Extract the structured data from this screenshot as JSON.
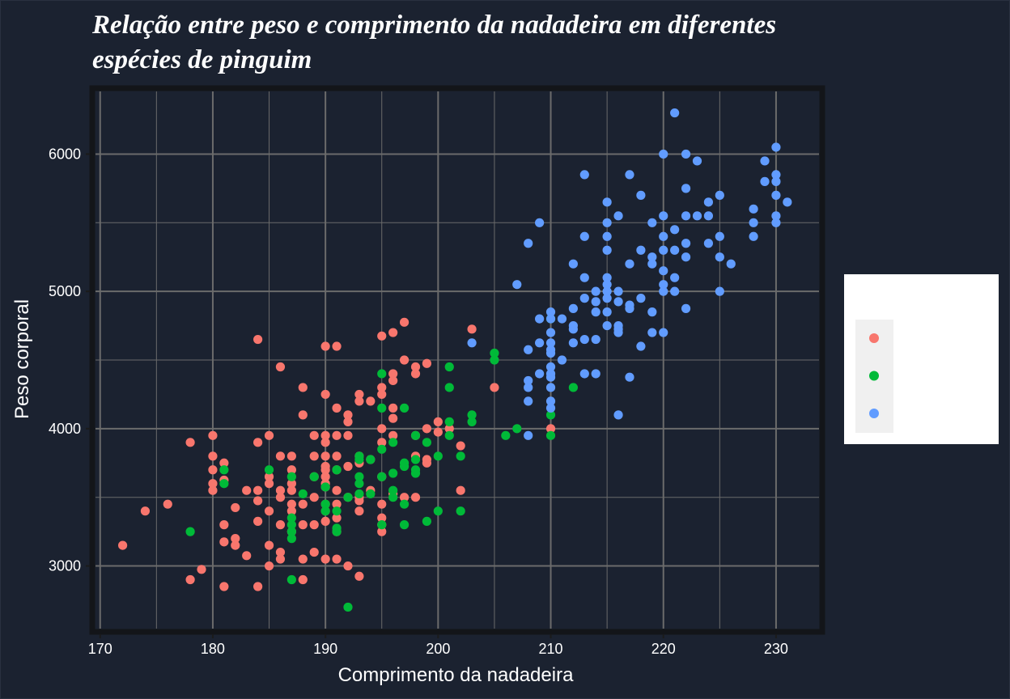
{
  "chart_data": {
    "type": "scatter",
    "title_line1": "Relação entre peso e comprimento da nadadeira em diferentes",
    "title_line2": "espécies de pinguim",
    "xlabel": "Comprimento da nadadeira",
    "ylabel": "Peso corporal",
    "xlim": [
      169.3,
      234.1
    ],
    "ylim": [
      2520,
      6480
    ],
    "x_ticks": [
      "170",
      "180",
      "190",
      "200",
      "210",
      "220",
      "230"
    ],
    "y_ticks": [
      "3000",
      "4000",
      "5000",
      "6000"
    ],
    "x_tick_values": [
      170,
      180,
      190,
      200,
      210,
      220,
      230
    ],
    "y_tick_values": [
      3000,
      4000,
      5000,
      6000
    ],
    "grid": true,
    "legend_position": "right",
    "colors": {
      "background": "#1b2230",
      "panel": "#1b2230",
      "panel_border": "#131519",
      "grid": "#6b6b6b",
      "legend_box": "#ffffff",
      "legend_key_bg": "#f0f0f0"
    },
    "series": [
      {
        "color": "#f8766d",
        "points": [
          [
            172,
            3150
          ],
          [
            174,
            3400
          ],
          [
            176,
            3450
          ],
          [
            178,
            3900
          ],
          [
            178,
            2900
          ],
          [
            179,
            2975
          ],
          [
            180,
            3950
          ],
          [
            180,
            3800
          ],
          [
            180,
            3700
          ],
          [
            180,
            3600
          ],
          [
            180,
            3550
          ],
          [
            181,
            3300
          ],
          [
            181,
            3175
          ],
          [
            181,
            2850
          ],
          [
            181,
            3750
          ],
          [
            181,
            3625
          ],
          [
            182,
            3425
          ],
          [
            182,
            3200
          ],
          [
            182,
            3150
          ],
          [
            183,
            3550
          ],
          [
            183,
            3075
          ],
          [
            184,
            4650
          ],
          [
            184,
            3900
          ],
          [
            184,
            3550
          ],
          [
            184,
            3475
          ],
          [
            184,
            3325
          ],
          [
            184,
            2850
          ],
          [
            185,
            3950
          ],
          [
            185,
            3650
          ],
          [
            185,
            3600
          ],
          [
            185,
            3400
          ],
          [
            185,
            3150
          ],
          [
            185,
            3000
          ],
          [
            186,
            4450
          ],
          [
            186,
            3800
          ],
          [
            186,
            3550
          ],
          [
            186,
            3500
          ],
          [
            186,
            3300
          ],
          [
            186,
            3100
          ],
          [
            186,
            3050
          ],
          [
            187,
            3800
          ],
          [
            187,
            3700
          ],
          [
            187,
            3600
          ],
          [
            187,
            3550
          ],
          [
            187,
            3450
          ],
          [
            187,
            3400
          ],
          [
            187,
            3250
          ],
          [
            188,
            4300
          ],
          [
            188,
            4100
          ],
          [
            188,
            3450
          ],
          [
            188,
            3300
          ],
          [
            188,
            3050
          ],
          [
            188,
            2900
          ],
          [
            189,
            3950
          ],
          [
            189,
            3800
          ],
          [
            189,
            3650
          ],
          [
            189,
            3500
          ],
          [
            189,
            3300
          ],
          [
            189,
            3100
          ],
          [
            190,
            4600
          ],
          [
            190,
            4250
          ],
          [
            190,
            3950
          ],
          [
            190,
            3900
          ],
          [
            190,
            3800
          ],
          [
            190,
            3725
          ],
          [
            190,
            3700
          ],
          [
            190,
            3650
          ],
          [
            190,
            3600
          ],
          [
            190,
            3575
          ],
          [
            190,
            3450
          ],
          [
            190,
            3400
          ],
          [
            190,
            3325
          ],
          [
            190,
            3050
          ],
          [
            191,
            4600
          ],
          [
            191,
            4150
          ],
          [
            191,
            3950
          ],
          [
            191,
            3800
          ],
          [
            191,
            3700
          ],
          [
            191,
            3550
          ],
          [
            191,
            3450
          ],
          [
            191,
            3350
          ],
          [
            191,
            3250
          ],
          [
            191,
            3050
          ],
          [
            192,
            4100
          ],
          [
            192,
            4050
          ],
          [
            192,
            3950
          ],
          [
            192,
            3725
          ],
          [
            192,
            3500
          ],
          [
            192,
            3000
          ],
          [
            193,
            4250
          ],
          [
            193,
            4200
          ],
          [
            193,
            3800
          ],
          [
            193,
            3750
          ],
          [
            193,
            3500
          ],
          [
            193,
            3475
          ],
          [
            193,
            3400
          ],
          [
            193,
            2925
          ],
          [
            194,
            4200
          ],
          [
            194,
            3775
          ],
          [
            194,
            3550
          ],
          [
            195,
            4675
          ],
          [
            195,
            4300
          ],
          [
            195,
            4250
          ],
          [
            195,
            4000
          ],
          [
            195,
            3900
          ],
          [
            195,
            3650
          ],
          [
            195,
            3450
          ],
          [
            195,
            3350
          ],
          [
            195,
            3300
          ],
          [
            195,
            3250
          ],
          [
            196,
            4700
          ],
          [
            196,
            4400
          ],
          [
            196,
            4350
          ],
          [
            196,
            4150
          ],
          [
            196,
            4075
          ],
          [
            196,
            3950
          ],
          [
            196,
            3525
          ],
          [
            197,
            4775
          ],
          [
            197,
            4500
          ],
          [
            197,
            3500
          ],
          [
            198,
            4450
          ],
          [
            198,
            4400
          ],
          [
            198,
            3950
          ],
          [
            198,
            3800
          ],
          [
            198,
            3500
          ],
          [
            199,
            4475
          ],
          [
            199,
            4000
          ],
          [
            199,
            3775
          ],
          [
            199,
            3750
          ],
          [
            200,
            4050
          ],
          [
            200,
            3975
          ],
          [
            201,
            4000
          ],
          [
            202,
            3875
          ],
          [
            202,
            3550
          ],
          [
            203,
            4725
          ],
          [
            205,
            4300
          ],
          [
            210,
            4000
          ]
        ]
      },
      {
        "color": "#00ba38",
        "points": [
          [
            178,
            3250
          ],
          [
            181,
            3700
          ],
          [
            181,
            3600
          ],
          [
            185,
            3700
          ],
          [
            187,
            3650
          ],
          [
            187,
            3350
          ],
          [
            187,
            3300
          ],
          [
            187,
            3250
          ],
          [
            187,
            3200
          ],
          [
            187,
            2900
          ],
          [
            188,
            3525
          ],
          [
            189,
            3650
          ],
          [
            190,
            3575
          ],
          [
            190,
            3450
          ],
          [
            190,
            3400
          ],
          [
            191,
            3700
          ],
          [
            191,
            3400
          ],
          [
            191,
            3275
          ],
          [
            191,
            3250
          ],
          [
            192,
            3500
          ],
          [
            192,
            2700
          ],
          [
            193,
            3800
          ],
          [
            193,
            3775
          ],
          [
            193,
            3650
          ],
          [
            193,
            3600
          ],
          [
            193,
            3525
          ],
          [
            194,
            3775
          ],
          [
            194,
            3525
          ],
          [
            195,
            4400
          ],
          [
            195,
            4150
          ],
          [
            195,
            3850
          ],
          [
            195,
            3650
          ],
          [
            195,
            3300
          ],
          [
            196,
            3900
          ],
          [
            196,
            3675
          ],
          [
            196,
            3550
          ],
          [
            196,
            3500
          ],
          [
            197,
            4150
          ],
          [
            197,
            3750
          ],
          [
            197,
            3725
          ],
          [
            197,
            3450
          ],
          [
            197,
            3300
          ],
          [
            198,
            3950
          ],
          [
            198,
            3775
          ],
          [
            198,
            3700
          ],
          [
            198,
            3675
          ],
          [
            199,
            3900
          ],
          [
            199,
            3325
          ],
          [
            200,
            3800
          ],
          [
            200,
            3400
          ],
          [
            201,
            4450
          ],
          [
            201,
            4300
          ],
          [
            201,
            4050
          ],
          [
            201,
            3950
          ],
          [
            202,
            3800
          ],
          [
            202,
            3400
          ],
          [
            203,
            4100
          ],
          [
            203,
            4050
          ],
          [
            205,
            4550
          ],
          [
            205,
            4500
          ],
          [
            206,
            3950
          ],
          [
            207,
            4000
          ],
          [
            210,
            4800
          ],
          [
            210,
            4100
          ],
          [
            210,
            3950
          ],
          [
            212,
            4300
          ]
        ]
      },
      {
        "color": "#619cff",
        "points": [
          [
            203,
            4625
          ],
          [
            207,
            5050
          ],
          [
            208,
            5350
          ],
          [
            208,
            4575
          ],
          [
            208,
            4350
          ],
          [
            208,
            4300
          ],
          [
            208,
            4200
          ],
          [
            208,
            3950
          ],
          [
            209,
            5500
          ],
          [
            209,
            4800
          ],
          [
            209,
            4625
          ],
          [
            209,
            4400
          ],
          [
            210,
            4850
          ],
          [
            210,
            4800
          ],
          [
            210,
            4700
          ],
          [
            210,
            4625
          ],
          [
            210,
            4575
          ],
          [
            210,
            4550
          ],
          [
            210,
            4450
          ],
          [
            210,
            4400
          ],
          [
            210,
            4375
          ],
          [
            210,
            4300
          ],
          [
            210,
            4200
          ],
          [
            210,
            4150
          ],
          [
            211,
            4800
          ],
          [
            211,
            4500
          ],
          [
            212,
            5200
          ],
          [
            212,
            4875
          ],
          [
            212,
            4750
          ],
          [
            212,
            4725
          ],
          [
            212,
            4625
          ],
          [
            213,
            5850
          ],
          [
            213,
            5400
          ],
          [
            213,
            5100
          ],
          [
            213,
            4950
          ],
          [
            213,
            4650
          ],
          [
            213,
            4400
          ],
          [
            214,
            5000
          ],
          [
            214,
            4925
          ],
          [
            214,
            4850
          ],
          [
            214,
            4650
          ],
          [
            214,
            4400
          ],
          [
            215,
            5650
          ],
          [
            215,
            5500
          ],
          [
            215,
            5400
          ],
          [
            215,
            5300
          ],
          [
            215,
            5100
          ],
          [
            215,
            5050
          ],
          [
            215,
            5000
          ],
          [
            215,
            4950
          ],
          [
            215,
            4850
          ],
          [
            215,
            4750
          ],
          [
            216,
            5550
          ],
          [
            216,
            5000
          ],
          [
            216,
            4925
          ],
          [
            216,
            4750
          ],
          [
            216,
            4725
          ],
          [
            216,
            4700
          ],
          [
            216,
            4100
          ],
          [
            217,
            5850
          ],
          [
            217,
            5200
          ],
          [
            217,
            4900
          ],
          [
            217,
            4875
          ],
          [
            217,
            4375
          ],
          [
            218,
            5700
          ],
          [
            218,
            5300
          ],
          [
            218,
            4950
          ],
          [
            218,
            4600
          ],
          [
            219,
            5500
          ],
          [
            219,
            5250
          ],
          [
            219,
            5200
          ],
          [
            219,
            4850
          ],
          [
            219,
            4700
          ],
          [
            220,
            6000
          ],
          [
            220,
            5550
          ],
          [
            220,
            5400
          ],
          [
            220,
            5300
          ],
          [
            220,
            5150
          ],
          [
            220,
            5050
          ],
          [
            220,
            5000
          ],
          [
            220,
            4700
          ],
          [
            221,
            6300
          ],
          [
            221,
            5450
          ],
          [
            221,
            5300
          ],
          [
            221,
            5100
          ],
          [
            221,
            5000
          ],
          [
            222,
            6000
          ],
          [
            222,
            5750
          ],
          [
            222,
            5550
          ],
          [
            222,
            5350
          ],
          [
            222,
            5250
          ],
          [
            222,
            4875
          ],
          [
            223,
            5950
          ],
          [
            223,
            5550
          ],
          [
            224,
            5650
          ],
          [
            224,
            5550
          ],
          [
            224,
            5350
          ],
          [
            225,
            5700
          ],
          [
            225,
            5400
          ],
          [
            225,
            5250
          ],
          [
            225,
            5000
          ],
          [
            226,
            5200
          ],
          [
            228,
            5600
          ],
          [
            228,
            5500
          ],
          [
            228,
            5400
          ],
          [
            229,
            5950
          ],
          [
            229,
            5800
          ],
          [
            230,
            6050
          ],
          [
            230,
            5850
          ],
          [
            230,
            5800
          ],
          [
            230,
            5700
          ],
          [
            230,
            5550
          ],
          [
            230,
            5500
          ],
          [
            231,
            5650
          ]
        ]
      }
    ]
  }
}
